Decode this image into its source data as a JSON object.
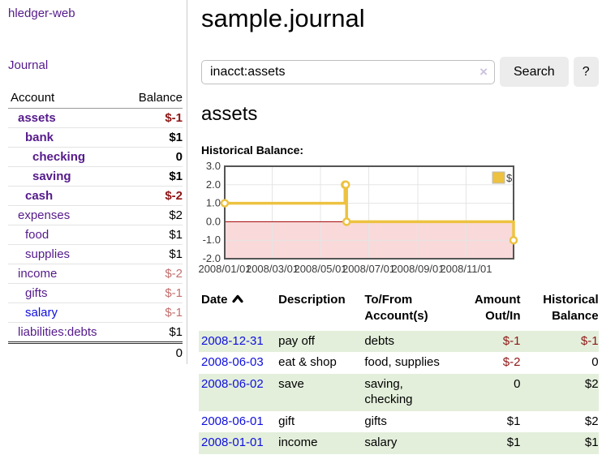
{
  "colors": {
    "link_purple": "#551a8b",
    "link_blue": "#0f0fdd",
    "negative_strong": "#8f1515",
    "negative_pale": "#c2706e",
    "row_stripe_green": "#e3efdb",
    "button_bg": "#ececec",
    "divider": "#cccccc"
  },
  "app": {
    "brand": "hledger-web",
    "nav_journal": "Journal"
  },
  "sidebar": {
    "header": {
      "account": "Account",
      "balance": "Balance"
    },
    "accounts": [
      {
        "name": "assets",
        "indent": 0,
        "balance": "$-1",
        "bold": true,
        "neg": "strong",
        "link": "purple"
      },
      {
        "name": "bank",
        "indent": 1,
        "balance": "$1",
        "bold": true,
        "neg": "none",
        "link": "purple"
      },
      {
        "name": "checking",
        "indent": 2,
        "balance": "0",
        "bold": true,
        "neg": "none",
        "link": "purple"
      },
      {
        "name": "saving",
        "indent": 2,
        "balance": "$1",
        "bold": true,
        "neg": "none",
        "link": "purple"
      },
      {
        "name": "cash",
        "indent": 1,
        "balance": "$-2",
        "bold": true,
        "neg": "strong",
        "link": "purple"
      },
      {
        "name": "expenses",
        "indent": 0,
        "balance": "$2",
        "bold": false,
        "neg": "none",
        "link": "purple"
      },
      {
        "name": "food",
        "indent": 1,
        "balance": "$1",
        "bold": false,
        "neg": "none",
        "link": "purple"
      },
      {
        "name": "supplies",
        "indent": 1,
        "balance": "$1",
        "bold": false,
        "neg": "none",
        "link": "purple"
      },
      {
        "name": "income",
        "indent": 0,
        "balance": "$-2",
        "bold": false,
        "neg": "pale",
        "link": "purple"
      },
      {
        "name": "gifts",
        "indent": 1,
        "balance": "$-1",
        "bold": false,
        "neg": "pale",
        "link": "purple"
      },
      {
        "name": "salary",
        "indent": 1,
        "balance": "$-1",
        "bold": false,
        "neg": "pale",
        "link": "blue"
      },
      {
        "name": "liabilities:debts",
        "indent": 0,
        "balance": "$1",
        "bold": false,
        "neg": "none",
        "link": "purple"
      }
    ],
    "total": "0"
  },
  "page": {
    "title": "sample.journal"
  },
  "search": {
    "value": "inacct:assets",
    "clear": "×",
    "button": "Search",
    "help": "?"
  },
  "account_view": {
    "heading": "assets",
    "chart_title": "Historical Balance:"
  },
  "chart_data": {
    "type": "line",
    "step": true,
    "title": "Historical Balance",
    "legend": "$",
    "x_min": "2008-01-01",
    "x_max": "2008-12-31",
    "points": [
      [
        "2008-01-01",
        1
      ],
      [
        "2008-06-01",
        2
      ],
      [
        "2008-06-02",
        2
      ],
      [
        "2008-06-03",
        0
      ],
      [
        "2008-12-31",
        -1
      ]
    ],
    "ylim": [
      -2,
      3
    ],
    "yticks": [
      3,
      2,
      1,
      0,
      -1,
      -2
    ],
    "xticks": [
      "2008/01/01",
      "2008/03/01",
      "2008/05/01",
      "2008/07/01",
      "2008/09/01",
      "2008/11/01"
    ],
    "line_color": "#edc240",
    "marker_fill": "#ffffff",
    "negative_region_color": "#f9d9d9",
    "zero_line_color": "#a40000",
    "border_color": "#545454",
    "grid_color": "#e5e5e5",
    "tick_text_color": "#3a3a3a",
    "legend_border": "#bbbbbb"
  },
  "register": {
    "header": {
      "date": "Date",
      "description": "Description",
      "accounts": "To/From Account(s)",
      "amount": "Amount Out/In",
      "balance": "Historical Balance"
    },
    "rows": [
      {
        "date": "2008-12-31",
        "description": "pay off",
        "accounts": "debts",
        "amount": "$-1",
        "balance": "$-1",
        "amount_neg": true,
        "balance_neg": true
      },
      {
        "date": "2008-06-03",
        "description": "eat & shop",
        "accounts": "food, supplies",
        "amount": "$-2",
        "balance": "0",
        "amount_neg": true,
        "balance_neg": false
      },
      {
        "date": "2008-06-02",
        "description": "save",
        "accounts": "saving, checking",
        "amount": "0",
        "balance": "$2",
        "amount_neg": false,
        "balance_neg": false
      },
      {
        "date": "2008-06-01",
        "description": "gift",
        "accounts": "gifts",
        "amount": "$1",
        "balance": "$2",
        "amount_neg": false,
        "balance_neg": false
      },
      {
        "date": "2008-01-01",
        "description": "income",
        "accounts": "salary",
        "amount": "$1",
        "balance": "$1",
        "amount_neg": false,
        "balance_neg": false
      }
    ]
  }
}
